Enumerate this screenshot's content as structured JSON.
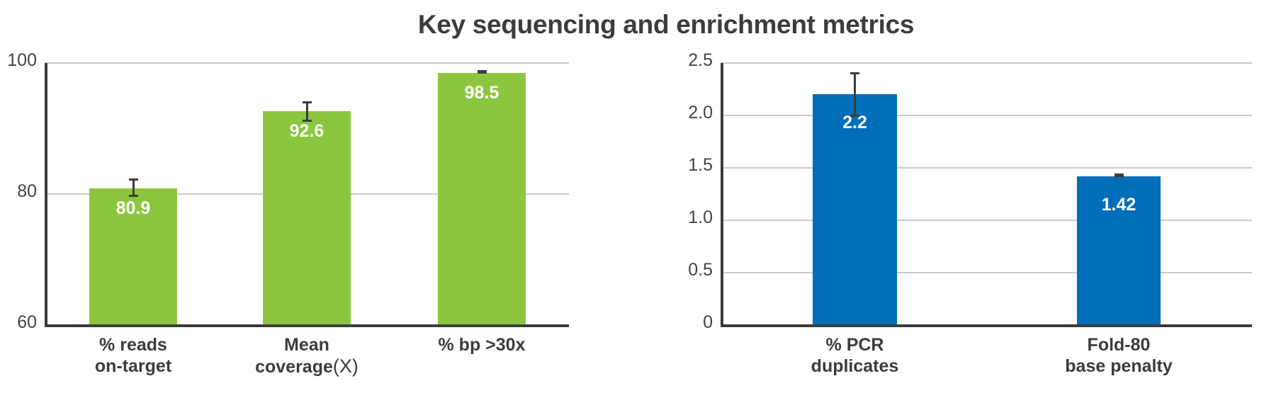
{
  "title": "Key sequencing and enrichment metrics",
  "colors": {
    "green": "#8cc63f",
    "blue": "#006eb8",
    "text": "#3c3c3e",
    "grid": "#c9c9c9",
    "axis": "#3c3c3e"
  },
  "chart_data": [
    {
      "type": "bar",
      "title": "",
      "xlabel": "",
      "ylabel": "",
      "ylim": [
        60,
        100
      ],
      "yticks": [
        60,
        80,
        100
      ],
      "ytick_labels": [
        "60",
        "80",
        "100"
      ],
      "grid": true,
      "color": "#8cc63f",
      "categories": [
        "% reads on-target",
        "Mean coverage (X)",
        "% bp >30x"
      ],
      "category_lines": [
        [
          "% reads",
          "on-target"
        ],
        [
          "Mean",
          "coverage",
          "(X)"
        ],
        [
          "% bp >30x"
        ]
      ],
      "values": [
        80.9,
        92.6,
        98.5
      ],
      "value_labels": [
        "80.9",
        "92.6",
        "98.5"
      ],
      "error_low": [
        79.8,
        91.2,
        98.3
      ],
      "error_high": [
        82.2,
        93.9,
        98.7
      ]
    },
    {
      "type": "bar",
      "title": "",
      "xlabel": "",
      "ylabel": "",
      "ylim": [
        0,
        2.5
      ],
      "yticks": [
        0,
        0.5,
        1.0,
        1.5,
        2.0,
        2.5
      ],
      "ytick_labels": [
        "0",
        "0.5",
        "1.0",
        "1.5",
        "2.0",
        "2.5"
      ],
      "grid": true,
      "color": "#006eb8",
      "categories": [
        "% PCR duplicates",
        "Fold-80 base penalty"
      ],
      "category_lines": [
        [
          "% PCR",
          "duplicates"
        ],
        [
          "Fold-80",
          "base penalty"
        ]
      ],
      "values": [
        2.2,
        1.42
      ],
      "value_labels": [
        "2.2",
        "1.42"
      ],
      "error_low": [
        2.0,
        1.41
      ],
      "error_high": [
        2.4,
        1.43
      ]
    }
  ]
}
